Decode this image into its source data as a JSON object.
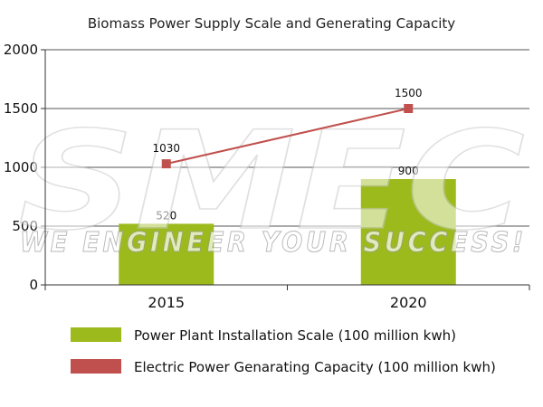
{
  "chart_data": {
    "type": "bar",
    "title": "Biomass Power Supply Scale and Generating Capacity",
    "categories": [
      "2015",
      "2020"
    ],
    "ylim": [
      0,
      2000
    ],
    "yticks": [
      "0",
      "500",
      "1000",
      "1500",
      "2000"
    ],
    "grid": true,
    "legend_placement": "bottom",
    "series": [
      {
        "name": "Power Plant Installation Scale (100 million kwh)",
        "kind": "bar",
        "values": [
          520,
          900
        ],
        "labels": [
          "520",
          "900"
        ],
        "color": "#9cba1c"
      },
      {
        "name": "Electric Power Genarating Capacity (100 million kwh)",
        "kind": "line",
        "values": [
          1030,
          1500
        ],
        "labels": [
          "1030",
          "1500"
        ],
        "color": "#c0504d"
      }
    ]
  },
  "watermark": {
    "logo": "SMEC",
    "slogan": "WE ENGINEER YOUR SUCCESS!"
  }
}
